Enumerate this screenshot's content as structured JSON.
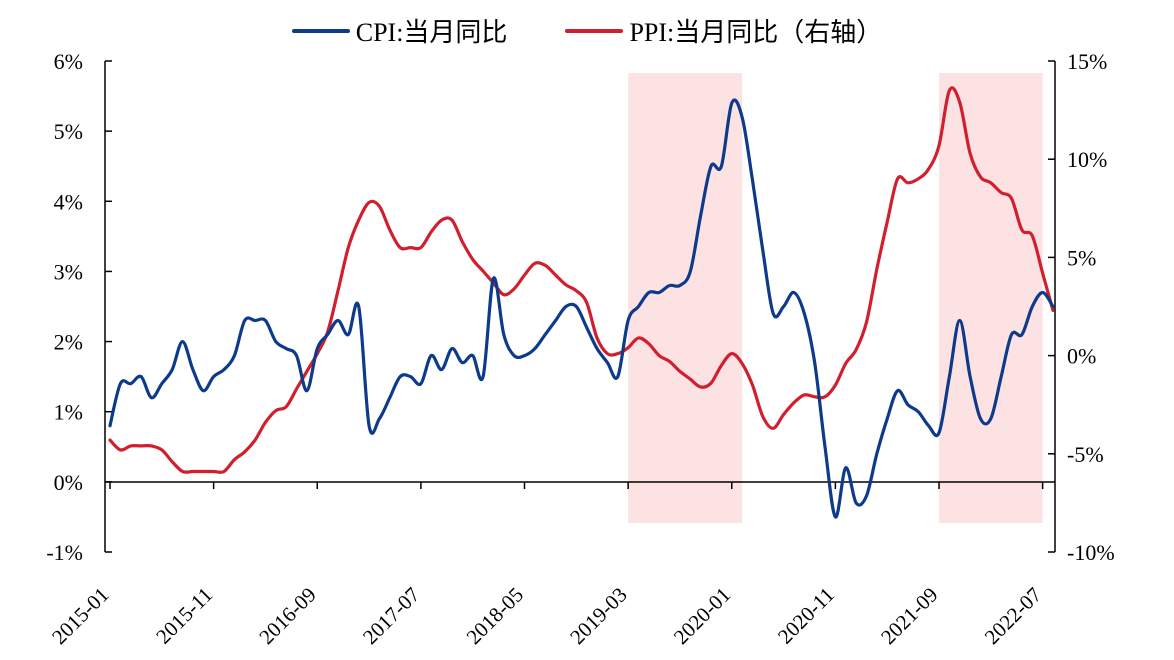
{
  "chart_data": {
    "type": "line",
    "legend_position": "top",
    "grid": false,
    "x_ticks": [
      "2015-01",
      "2015-11",
      "2016-09",
      "2017-07",
      "2018-05",
      "2019-03",
      "2020-01",
      "2020-11",
      "2021-09",
      "2022-07"
    ],
    "left_axis": {
      "ticks": [
        "-1%",
        "0%",
        "1%",
        "2%",
        "3%",
        "4%",
        "5%",
        "6%"
      ],
      "ylim": [
        -1,
        6
      ]
    },
    "right_axis": {
      "ticks": [
        "-10%",
        "-5%",
        "0%",
        "5%",
        "10%",
        "15%"
      ],
      "ylim": [
        -10,
        15
      ]
    },
    "shaded_ranges": [
      [
        "2019-03",
        "2020-02"
      ],
      [
        "2021-09",
        "2022-07"
      ]
    ],
    "series": [
      {
        "name": "CPI:当月同比",
        "axis": "left",
        "color": "#0e3a8c",
        "points": [
          [
            "2015-01",
            0.8
          ],
          [
            "2015-02",
            1.4
          ],
          [
            "2015-03",
            1.4
          ],
          [
            "2015-04",
            1.5
          ],
          [
            "2015-05",
            1.2
          ],
          [
            "2015-06",
            1.4
          ],
          [
            "2015-07",
            1.6
          ],
          [
            "2015-08",
            2.0
          ],
          [
            "2015-09",
            1.6
          ],
          [
            "2015-10",
            1.3
          ],
          [
            "2015-11",
            1.5
          ],
          [
            "2015-12",
            1.6
          ],
          [
            "2016-01",
            1.8
          ],
          [
            "2016-02",
            2.3
          ],
          [
            "2016-03",
            2.3
          ],
          [
            "2016-04",
            2.3
          ],
          [
            "2016-05",
            2.0
          ],
          [
            "2016-06",
            1.9
          ],
          [
            "2016-07",
            1.8
          ],
          [
            "2016-08",
            1.3
          ],
          [
            "2016-09",
            1.9
          ],
          [
            "2016-10",
            2.1
          ],
          [
            "2016-11",
            2.3
          ],
          [
            "2016-12",
            2.1
          ],
          [
            "2017-01",
            2.5
          ],
          [
            "2017-02",
            0.8
          ],
          [
            "2017-03",
            0.9
          ],
          [
            "2017-04",
            1.2
          ],
          [
            "2017-05",
            1.5
          ],
          [
            "2017-06",
            1.5
          ],
          [
            "2017-07",
            1.4
          ],
          [
            "2017-08",
            1.8
          ],
          [
            "2017-09",
            1.6
          ],
          [
            "2017-10",
            1.9
          ],
          [
            "2017-11",
            1.7
          ],
          [
            "2017-12",
            1.8
          ],
          [
            "2018-01",
            1.5
          ],
          [
            "2018-02",
            2.9
          ],
          [
            "2018-03",
            2.1
          ],
          [
            "2018-04",
            1.8
          ],
          [
            "2018-05",
            1.8
          ],
          [
            "2018-06",
            1.9
          ],
          [
            "2018-07",
            2.1
          ],
          [
            "2018-08",
            2.3
          ],
          [
            "2018-09",
            2.5
          ],
          [
            "2018-10",
            2.5
          ],
          [
            "2018-11",
            2.2
          ],
          [
            "2018-12",
            1.9
          ],
          [
            "2019-01",
            1.7
          ],
          [
            "2019-02",
            1.5
          ],
          [
            "2019-03",
            2.3
          ],
          [
            "2019-04",
            2.5
          ],
          [
            "2019-05",
            2.7
          ],
          [
            "2019-06",
            2.7
          ],
          [
            "2019-07",
            2.8
          ],
          [
            "2019-08",
            2.8
          ],
          [
            "2019-09",
            3.0
          ],
          [
            "2019-10",
            3.8
          ],
          [
            "2019-11",
            4.5
          ],
          [
            "2019-12",
            4.5
          ],
          [
            "2020-01",
            5.4
          ],
          [
            "2020-02",
            5.2
          ],
          [
            "2020-03",
            4.3
          ],
          [
            "2020-04",
            3.3
          ],
          [
            "2020-05",
            2.4
          ],
          [
            "2020-06",
            2.5
          ],
          [
            "2020-07",
            2.7
          ],
          [
            "2020-08",
            2.4
          ],
          [
            "2020-09",
            1.7
          ],
          [
            "2020-10",
            0.5
          ],
          [
            "2020-11",
            -0.5
          ],
          [
            "2020-12",
            0.2
          ],
          [
            "2021-01",
            -0.3
          ],
          [
            "2021-02",
            -0.2
          ],
          [
            "2021-03",
            0.4
          ],
          [
            "2021-04",
            0.9
          ],
          [
            "2021-05",
            1.3
          ],
          [
            "2021-06",
            1.1
          ],
          [
            "2021-07",
            1.0
          ],
          [
            "2021-08",
            0.8
          ],
          [
            "2021-09",
            0.7
          ],
          [
            "2021-10",
            1.5
          ],
          [
            "2021-11",
            2.3
          ],
          [
            "2021-12",
            1.5
          ],
          [
            "2022-01",
            0.9
          ],
          [
            "2022-02",
            0.9
          ],
          [
            "2022-03",
            1.5
          ],
          [
            "2022-04",
            2.1
          ],
          [
            "2022-05",
            2.1
          ],
          [
            "2022-06",
            2.5
          ],
          [
            "2022-07",
            2.7
          ],
          [
            "2022-08",
            2.5
          ]
        ]
      },
      {
        "name": "PPI:当月同比（右轴）",
        "axis": "right",
        "color": "#d11f2e",
        "points": [
          [
            "2015-01",
            -4.3
          ],
          [
            "2015-02",
            -4.8
          ],
          [
            "2015-03",
            -4.6
          ],
          [
            "2015-04",
            -4.6
          ],
          [
            "2015-05",
            -4.6
          ],
          [
            "2015-06",
            -4.8
          ],
          [
            "2015-07",
            -5.4
          ],
          [
            "2015-08",
            -5.9
          ],
          [
            "2015-09",
            -5.9
          ],
          [
            "2015-10",
            -5.9
          ],
          [
            "2015-11",
            -5.9
          ],
          [
            "2015-12",
            -5.9
          ],
          [
            "2016-01",
            -5.3
          ],
          [
            "2016-02",
            -4.9
          ],
          [
            "2016-03",
            -4.3
          ],
          [
            "2016-04",
            -3.4
          ],
          [
            "2016-05",
            -2.8
          ],
          [
            "2016-06",
            -2.6
          ],
          [
            "2016-07",
            -1.7
          ],
          [
            "2016-08",
            -0.8
          ],
          [
            "2016-09",
            0.1
          ],
          [
            "2016-10",
            1.2
          ],
          [
            "2016-11",
            3.3
          ],
          [
            "2016-12",
            5.5
          ],
          [
            "2017-01",
            6.9
          ],
          [
            "2017-02",
            7.8
          ],
          [
            "2017-03",
            7.6
          ],
          [
            "2017-04",
            6.4
          ],
          [
            "2017-05",
            5.5
          ],
          [
            "2017-06",
            5.5
          ],
          [
            "2017-07",
            5.5
          ],
          [
            "2017-08",
            6.3
          ],
          [
            "2017-09",
            6.9
          ],
          [
            "2017-10",
            6.9
          ],
          [
            "2017-11",
            5.8
          ],
          [
            "2017-12",
            4.9
          ],
          [
            "2018-01",
            4.3
          ],
          [
            "2018-02",
            3.7
          ],
          [
            "2018-03",
            3.1
          ],
          [
            "2018-04",
            3.4
          ],
          [
            "2018-05",
            4.1
          ],
          [
            "2018-06",
            4.7
          ],
          [
            "2018-07",
            4.6
          ],
          [
            "2018-08",
            4.1
          ],
          [
            "2018-09",
            3.6
          ],
          [
            "2018-10",
            3.3
          ],
          [
            "2018-11",
            2.7
          ],
          [
            "2018-12",
            0.9
          ],
          [
            "2019-01",
            0.1
          ],
          [
            "2019-02",
            0.1
          ],
          [
            "2019-03",
            0.4
          ],
          [
            "2019-04",
            0.9
          ],
          [
            "2019-05",
            0.6
          ],
          [
            "2019-06",
            0.0
          ],
          [
            "2019-07",
            -0.3
          ],
          [
            "2019-08",
            -0.8
          ],
          [
            "2019-09",
            -1.2
          ],
          [
            "2019-10",
            -1.6
          ],
          [
            "2019-11",
            -1.4
          ],
          [
            "2019-12",
            -0.5
          ],
          [
            "2020-01",
            0.1
          ],
          [
            "2020-02",
            -0.4
          ],
          [
            "2020-03",
            -1.5
          ],
          [
            "2020-04",
            -3.1
          ],
          [
            "2020-05",
            -3.7
          ],
          [
            "2020-06",
            -3.0
          ],
          [
            "2020-07",
            -2.4
          ],
          [
            "2020-08",
            -2.0
          ],
          [
            "2020-09",
            -2.1
          ],
          [
            "2020-10",
            -2.1
          ],
          [
            "2020-11",
            -1.5
          ],
          [
            "2020-12",
            -0.4
          ],
          [
            "2021-01",
            0.3
          ],
          [
            "2021-02",
            1.7
          ],
          [
            "2021-03",
            4.4
          ],
          [
            "2021-04",
            6.8
          ],
          [
            "2021-05",
            9.0
          ],
          [
            "2021-06",
            8.8
          ],
          [
            "2021-07",
            9.0
          ],
          [
            "2021-08",
            9.5
          ],
          [
            "2021-09",
            10.7
          ],
          [
            "2021-10",
            13.5
          ],
          [
            "2021-11",
            12.9
          ],
          [
            "2021-12",
            10.3
          ],
          [
            "2022-01",
            9.1
          ],
          [
            "2022-02",
            8.8
          ],
          [
            "2022-03",
            8.3
          ],
          [
            "2022-04",
            8.0
          ],
          [
            "2022-05",
            6.4
          ],
          [
            "2022-06",
            6.1
          ],
          [
            "2022-07",
            4.2
          ],
          [
            "2022-08",
            2.3
          ]
        ]
      }
    ]
  }
}
